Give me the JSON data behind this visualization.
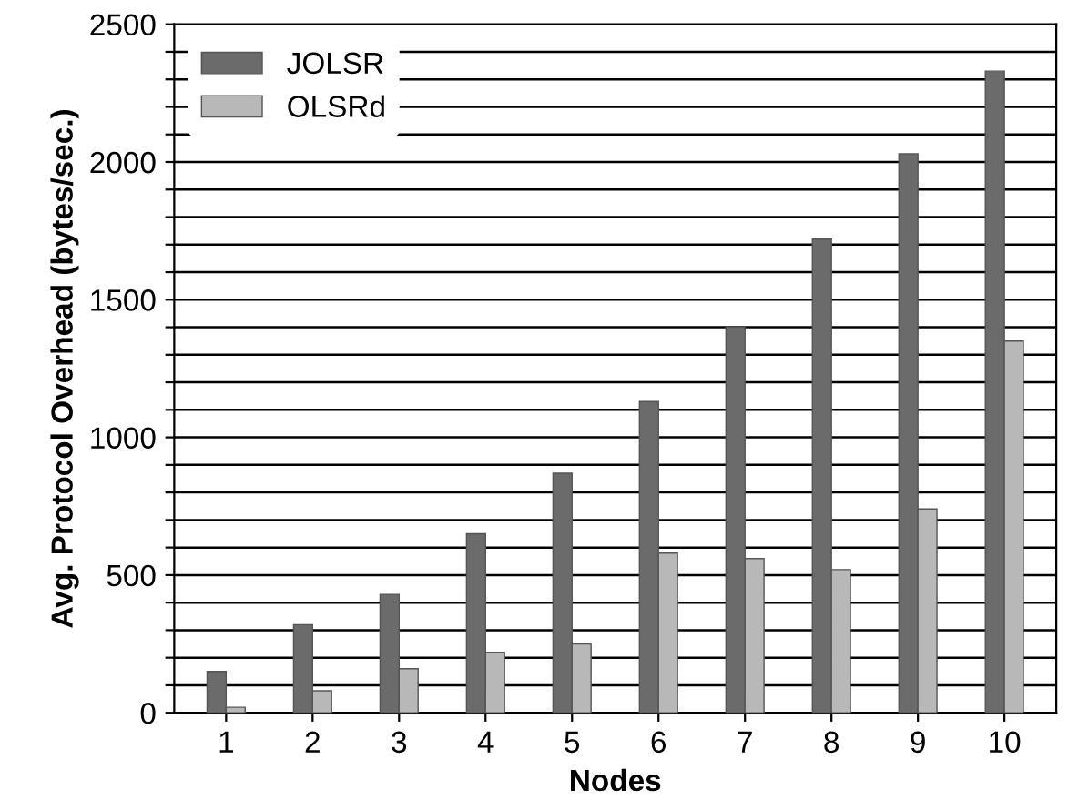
{
  "chart_data": {
    "type": "bar",
    "xlabel": "Nodes",
    "ylabel": "Avg. Protocol Overhead (bytes/sec.)",
    "categories": [
      "1",
      "2",
      "3",
      "4",
      "5",
      "6",
      "7",
      "8",
      "9",
      "10"
    ],
    "series": [
      {
        "name": "JOLSR",
        "color": "#6b6b6b",
        "values": [
          150,
          320,
          430,
          650,
          870,
          1130,
          1400,
          1720,
          2030,
          2330
        ]
      },
      {
        "name": "OLSRd",
        "color": "#b8b8b8",
        "values": [
          20,
          80,
          160,
          220,
          250,
          580,
          560,
          520,
          740,
          1350
        ]
      }
    ],
    "ylim": [
      0,
      2500
    ],
    "yticks": [
      0,
      {
        "value": 100,
        "label": null
      },
      {
        "value": 200,
        "label": null
      },
      {
        "value": 300,
        "label": null
      },
      {
        "value": 400,
        "label": null
      },
      500,
      {
        "value": 600,
        "label": null
      },
      {
        "value": 700,
        "label": null
      },
      {
        "value": 800,
        "label": null
      },
      {
        "value": 900,
        "label": null
      },
      1000,
      {
        "value": 1100,
        "label": null
      },
      {
        "value": 1200,
        "label": null
      },
      {
        "value": 1300,
        "label": null
      },
      {
        "value": 1400,
        "label": null
      },
      1500,
      {
        "value": 1600,
        "label": null
      },
      {
        "value": 1700,
        "label": null
      },
      {
        "value": 1800,
        "label": null
      },
      {
        "value": 1900,
        "label": null
      },
      2000,
      {
        "value": 2100,
        "label": null
      },
      {
        "value": 2200,
        "label": null
      },
      {
        "value": 2300,
        "label": null
      },
      {
        "value": 2400,
        "label": null
      },
      2500
    ],
    "grid": "y",
    "legend": "top left"
  }
}
